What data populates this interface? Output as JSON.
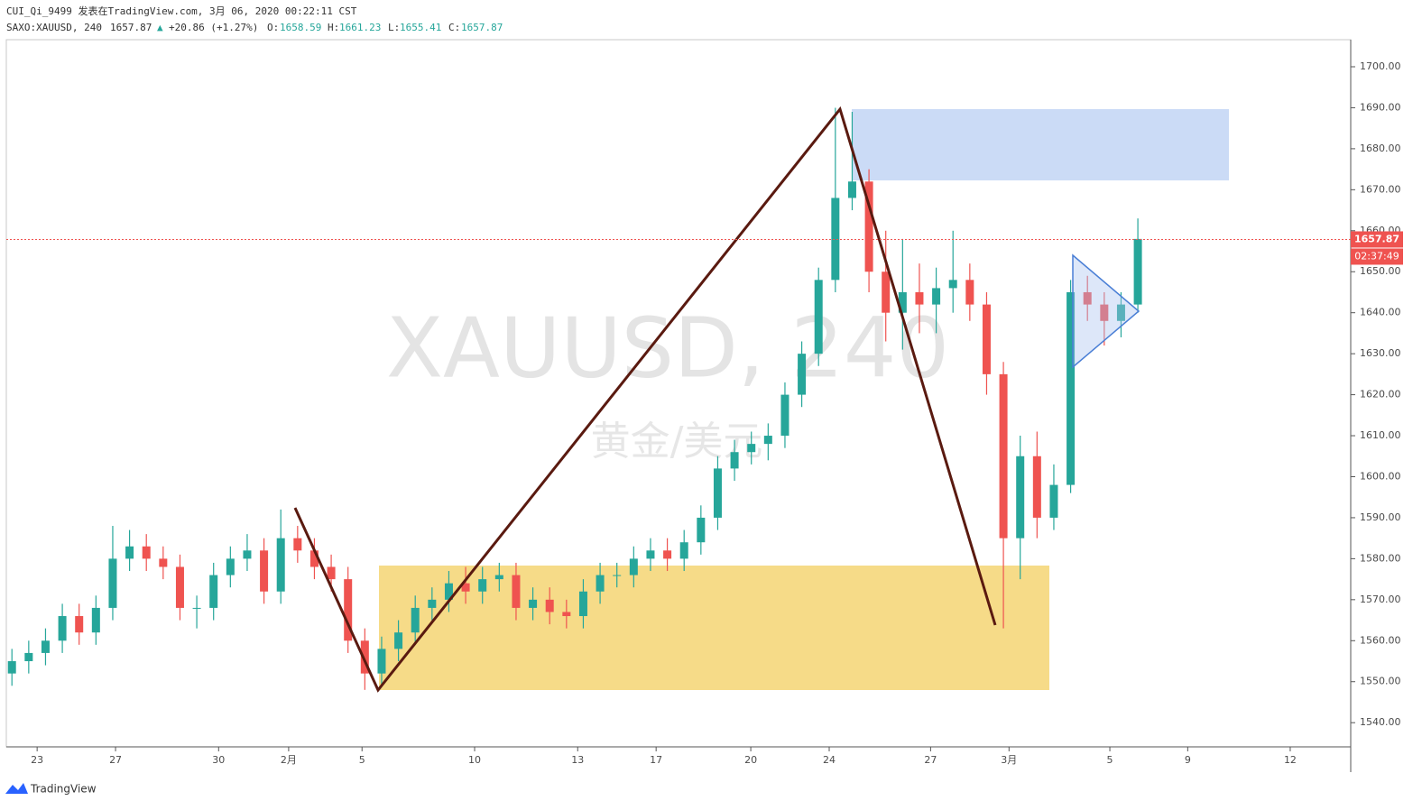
{
  "header": {
    "line1": "CUI_Qi_9499 发表在TradingView.com, 3月 06, 2020 00:22:11 CST",
    "symbol": "SAXO:XAUUSD, 240",
    "price": "1657.87",
    "arrow": "▲",
    "change": "+20.86 (+1.27%)",
    "o_label": "O:",
    "o_value": "1658.59",
    "h_label": "H:",
    "h_value": "1661.23",
    "l_label": "L:",
    "l_value": "1655.41",
    "c_label": "C:",
    "c_value": "1657.87"
  },
  "watermark": {
    "symbol": "XAUUSD, 240",
    "name": "黄金/美元"
  },
  "footer": {
    "brand": "TradingView"
  },
  "chart_data": {
    "type": "candlestick",
    "up_color": "#26a69a",
    "down_color": "#ef5350",
    "xlim": [
      0,
      240
    ],
    "ylim": [
      1534.1,
      1706.6
    ],
    "xticks": [
      {
        "value": 5.5,
        "label": "23"
      },
      {
        "value": 19.5,
        "label": "27"
      },
      {
        "value": 37.9,
        "label": "30"
      },
      {
        "value": 50.4,
        "label": "2月"
      },
      {
        "value": 63.5,
        "label": "5"
      },
      {
        "value": 83.6,
        "label": "10"
      },
      {
        "value": 102,
        "label": "13"
      },
      {
        "value": 116,
        "label": "17"
      },
      {
        "value": 132.9,
        "label": "20"
      },
      {
        "value": 146.9,
        "label": "24"
      },
      {
        "value": 165,
        "label": "27"
      },
      {
        "value": 179,
        "label": "3月"
      },
      {
        "value": 197,
        "label": "5"
      },
      {
        "value": 210.9,
        "label": "9"
      },
      {
        "value": 229.2,
        "label": "12"
      }
    ],
    "yticks": [
      {
        "value": 1540,
        "label": "1540.00"
      },
      {
        "value": 1550,
        "label": "1550.00"
      },
      {
        "value": 1560,
        "label": "1560.00"
      },
      {
        "value": 1570,
        "label": "1570.00"
      },
      {
        "value": 1580,
        "label": "1580.00"
      },
      {
        "value": 1590,
        "label": "1590.00"
      },
      {
        "value": 1600,
        "label": "1600.00"
      },
      {
        "value": 1610,
        "label": "1610.00"
      },
      {
        "value": 1620,
        "label": "1620.00"
      },
      {
        "value": 1630,
        "label": "1630.00"
      },
      {
        "value": 1640,
        "label": "1640.00"
      },
      {
        "value": 1650,
        "label": "1650.00"
      },
      {
        "value": 1660,
        "label": "1660.00"
      },
      {
        "value": 1670,
        "label": "1670.00"
      },
      {
        "value": 1680,
        "label": "1680.00"
      },
      {
        "value": 1690,
        "label": "1690.00"
      },
      {
        "value": 1700,
        "label": "1700.00"
      }
    ],
    "last_price": 1657.87,
    "last_price_color": "#ef5350",
    "countdown": "02:37:49",
    "x": [
      1,
      4,
      7,
      10,
      13,
      16,
      19,
      22,
      25,
      28,
      31,
      34,
      37,
      40,
      43,
      46,
      49,
      52,
      55,
      58,
      61,
      64,
      67,
      70,
      73,
      76,
      79,
      82,
      85,
      88,
      91,
      94,
      97,
      100,
      103,
      106,
      109,
      112,
      115,
      118,
      121,
      124,
      127,
      130,
      133,
      136,
      139,
      142,
      145,
      148,
      151,
      154,
      157,
      160,
      163,
      166,
      169,
      172,
      175,
      178,
      181,
      184,
      187,
      190,
      193,
      196,
      199,
      202
    ],
    "open": [
      1552,
      1555,
      1557,
      1560,
      1566,
      1562,
      1568,
      1580,
      1583,
      1580,
      1578,
      1568,
      1568,
      1576,
      1580,
      1582,
      1572,
      1585,
      1582,
      1578,
      1575,
      1560,
      1552,
      1558,
      1562,
      1568,
      1570,
      1574,
      1572,
      1575,
      1576,
      1568,
      1570,
      1567,
      1566,
      1572,
      1576,
      1576,
      1580,
      1582,
      1580,
      1584,
      1590,
      1602,
      1606,
      1608,
      1610,
      1620,
      1630,
      1648,
      1668,
      1672,
      1650,
      1640,
      1645,
      1642,
      1646,
      1648,
      1642,
      1625,
      1585,
      1605,
      1590,
      1598,
      1645,
      1642,
      1638,
      1642
    ],
    "high": [
      1558,
      1560,
      1563,
      1569,
      1569,
      1571,
      1588,
      1587,
      1586,
      1583,
      1581,
      1571,
      1579,
      1583,
      1586,
      1585,
      1592,
      1588,
      1585,
      1581,
      1578,
      1563,
      1561,
      1565,
      1571,
      1573,
      1577,
      1578,
      1578,
      1579,
      1579,
      1573,
      1573,
      1570,
      1575,
      1579,
      1579,
      1583,
      1585,
      1585,
      1587,
      1593,
      1605,
      1609,
      1611,
      1613,
      1623,
      1633,
      1651,
      1690,
      1689,
      1675,
      1660,
      1658,
      1652,
      1651,
      1660,
      1652,
      1645,
      1628,
      1610,
      1611,
      1603,
      1648,
      1649,
      1645,
      1645,
      1663
    ],
    "low": [
      1549,
      1552,
      1554,
      1557,
      1559,
      1559,
      1565,
      1577,
      1577,
      1575,
      1565,
      1563,
      1565,
      1573,
      1577,
      1569,
      1569,
      1579,
      1575,
      1572,
      1557,
      1548,
      1549,
      1555,
      1559,
      1565,
      1567,
      1569,
      1569,
      1572,
      1565,
      1565,
      1564,
      1563,
      1563,
      1569,
      1573,
      1573,
      1577,
      1577,
      1577,
      1581,
      1587,
      1599,
      1603,
      1604,
      1607,
      1617,
      1627,
      1645,
      1665,
      1645,
      1633,
      1631,
      1635,
      1635,
      1640,
      1638,
      1620,
      1563,
      1575,
      1585,
      1587,
      1596,
      1638,
      1632,
      1634,
      1640
    ],
    "close": [
      1555,
      1557,
      1560,
      1566,
      1562,
      1568,
      1580,
      1583,
      1580,
      1578,
      1568,
      1568,
      1576,
      1580,
      1582,
      1572,
      1585,
      1582,
      1578,
      1575,
      1560,
      1552,
      1558,
      1562,
      1568,
      1570,
      1574,
      1572,
      1575,
      1576,
      1568,
      1570,
      1567,
      1566,
      1572,
      1576,
      1576,
      1580,
      1582,
      1580,
      1584,
      1590,
      1602,
      1606,
      1608,
      1610,
      1620,
      1630,
      1648,
      1668,
      1672,
      1650,
      1640,
      1645,
      1642,
      1646,
      1648,
      1642,
      1625,
      1585,
      1605,
      1590,
      1598,
      1645,
      1642,
      1638,
      1642,
      1658
    ]
  }
}
